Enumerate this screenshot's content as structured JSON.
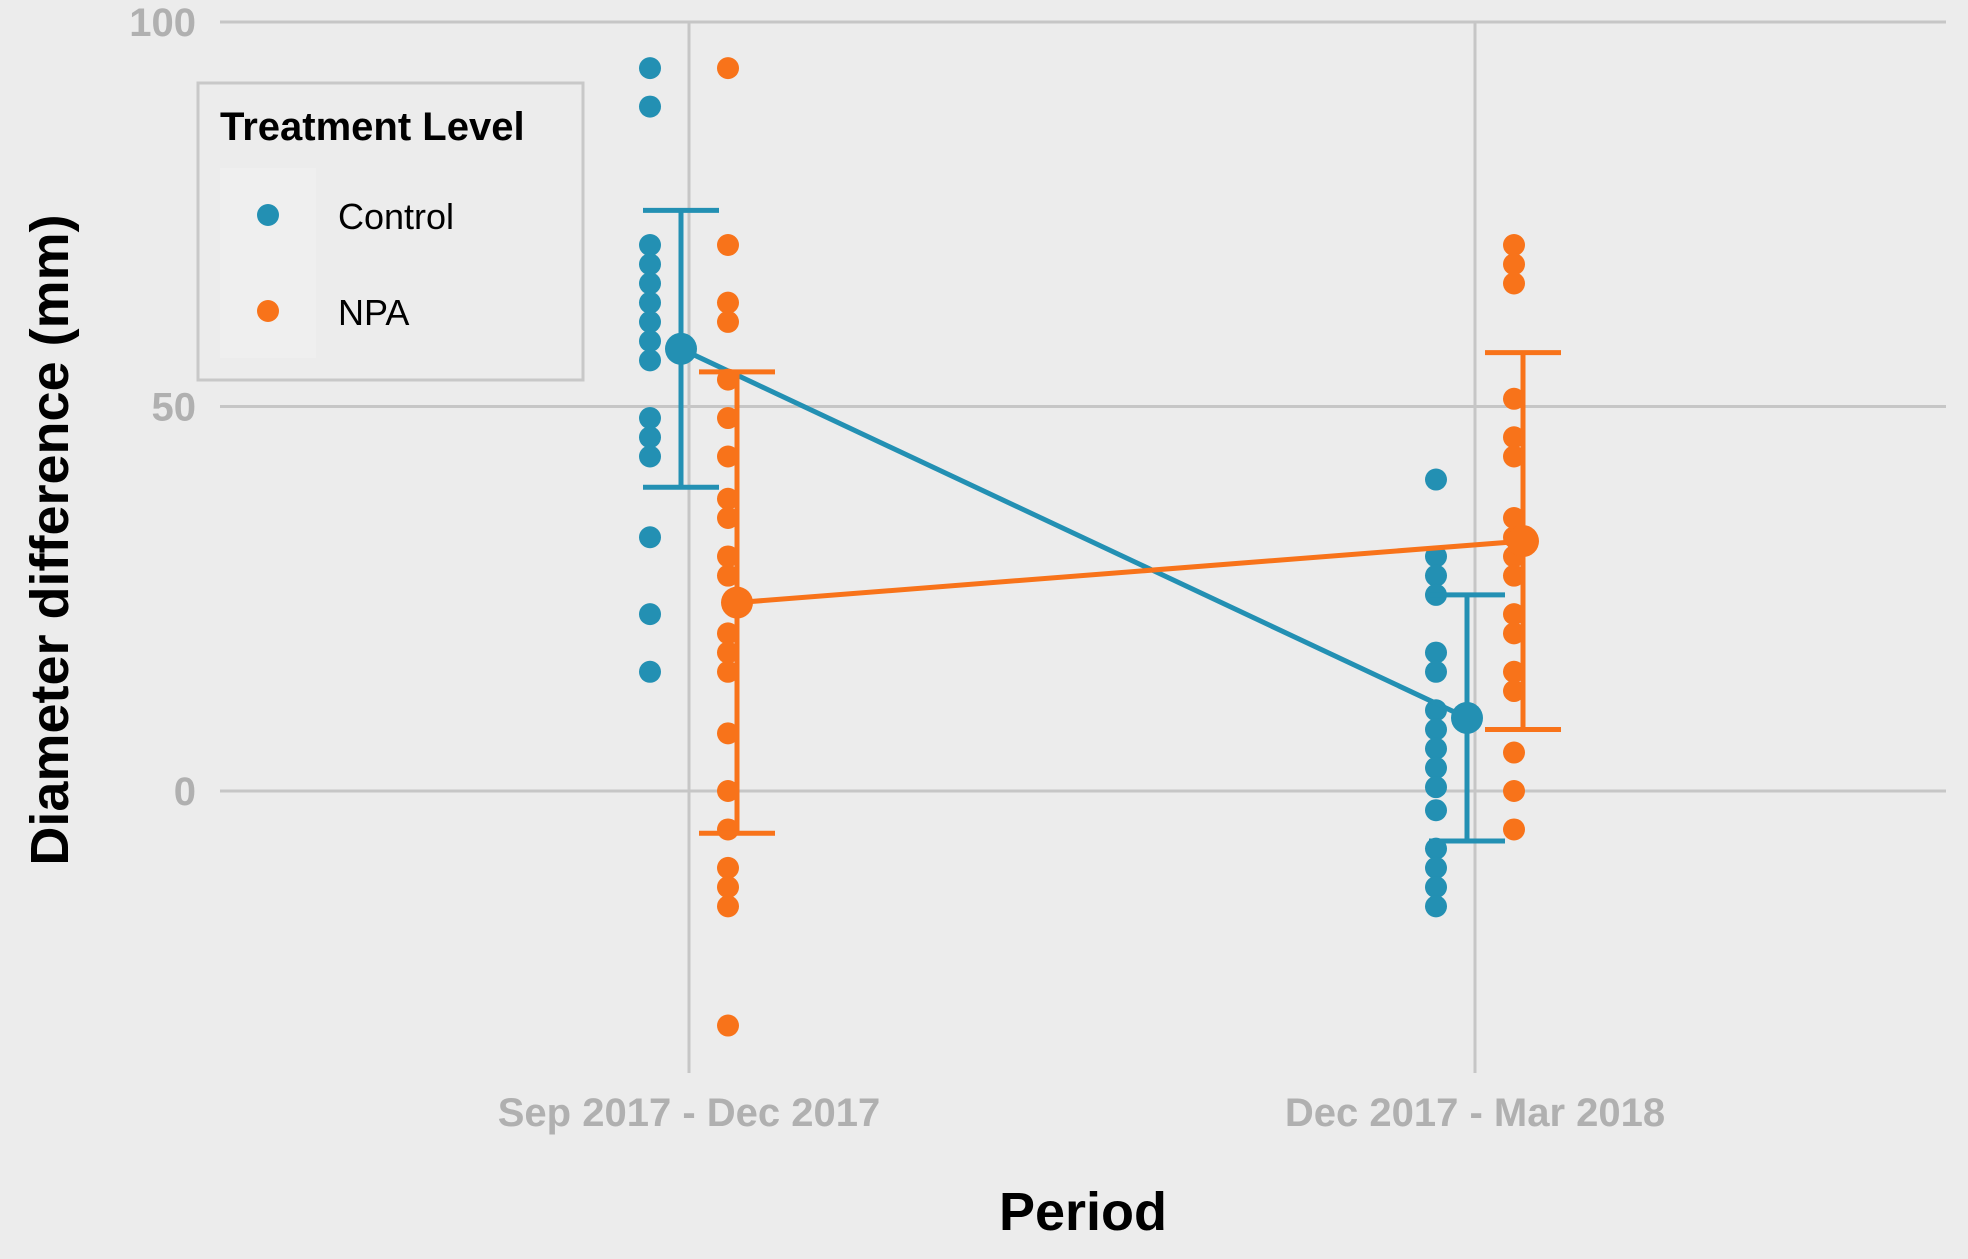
{
  "chart_data": {
    "type": "scatter",
    "xlabel": "Period",
    "ylabel": "Diameter difference (mm)",
    "categories": [
      "Sep 2017 - Dec 2017",
      "Dec 2017 - Mar 2018"
    ],
    "yticks": [
      0,
      50,
      100
    ],
    "ylim": [
      -37,
      100
    ],
    "grid": true,
    "legend": {
      "title": "Treatment Level",
      "placement": "top-left",
      "entries": [
        "Control",
        "NPA"
      ]
    },
    "series": [
      {
        "name": "Control",
        "color": "#2390b3",
        "points": [
          [
            94,
            89,
            71,
            68.5,
            66,
            63.5,
            61,
            58.5,
            56,
            48.5,
            46,
            43.5,
            33,
            23,
            15.5
          ],
          [
            40.5,
            30.5,
            28,
            25.5,
            18,
            15.5,
            10.5,
            8,
            5.5,
            3,
            0.5,
            -2.5,
            -7.5,
            -10,
            -12.5,
            -15
          ]
        ],
        "mean": [
          57.5,
          9.5
        ],
        "error_low": [
          39.5,
          -6.5
        ],
        "error_high": [
          75.5,
          25.5
        ]
      },
      {
        "name": "NPA",
        "color": "#f8731a",
        "points": [
          [
            94,
            71,
            63.5,
            61,
            53.5,
            48.5,
            43.5,
            38,
            35.5,
            30.5,
            28,
            20.5,
            18,
            15.5,
            7.5,
            0,
            -5,
            -10,
            -12.5,
            -15,
            -30.5
          ],
          [
            71,
            68.5,
            66,
            51,
            46,
            43.5,
            35.5,
            33,
            30.5,
            28,
            23,
            20.5,
            15.5,
            13,
            5,
            0,
            -5
          ]
        ],
        "mean": [
          24.5,
          32.5
        ],
        "error_low": [
          -5.5,
          8
        ],
        "error_high": [
          54.5,
          57
        ]
      }
    ]
  }
}
